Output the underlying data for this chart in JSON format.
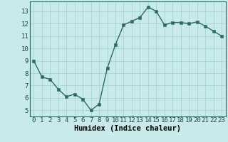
{
  "x": [
    0,
    1,
    2,
    3,
    4,
    5,
    6,
    7,
    8,
    9,
    10,
    11,
    12,
    13,
    14,
    15,
    16,
    17,
    18,
    19,
    20,
    21,
    22,
    23
  ],
  "y": [
    9.0,
    7.7,
    7.5,
    6.7,
    6.1,
    6.3,
    5.9,
    5.0,
    5.5,
    8.4,
    10.3,
    11.9,
    12.2,
    12.5,
    13.35,
    13.0,
    11.9,
    12.1,
    12.1,
    12.0,
    12.15,
    11.8,
    11.4,
    11.0
  ],
  "xlabel": "Humidex (Indice chaleur)",
  "ylim": [
    4.5,
    13.8
  ],
  "xlim": [
    -0.5,
    23.5
  ],
  "yticks": [
    5,
    6,
    7,
    8,
    9,
    10,
    11,
    12,
    13
  ],
  "xticks": [
    0,
    1,
    2,
    3,
    4,
    5,
    6,
    7,
    8,
    9,
    10,
    11,
    12,
    13,
    14,
    15,
    16,
    17,
    18,
    19,
    20,
    21,
    22,
    23
  ],
  "line_color": "#2d6b5e",
  "marker_color": "#2d6b5e",
  "bg_color": "#c8eaea",
  "grid_color": "#a8d4d4",
  "tick_fontsize": 6.5,
  "xlabel_fontsize": 7.5,
  "marker_size": 2.5,
  "line_width": 1.0
}
